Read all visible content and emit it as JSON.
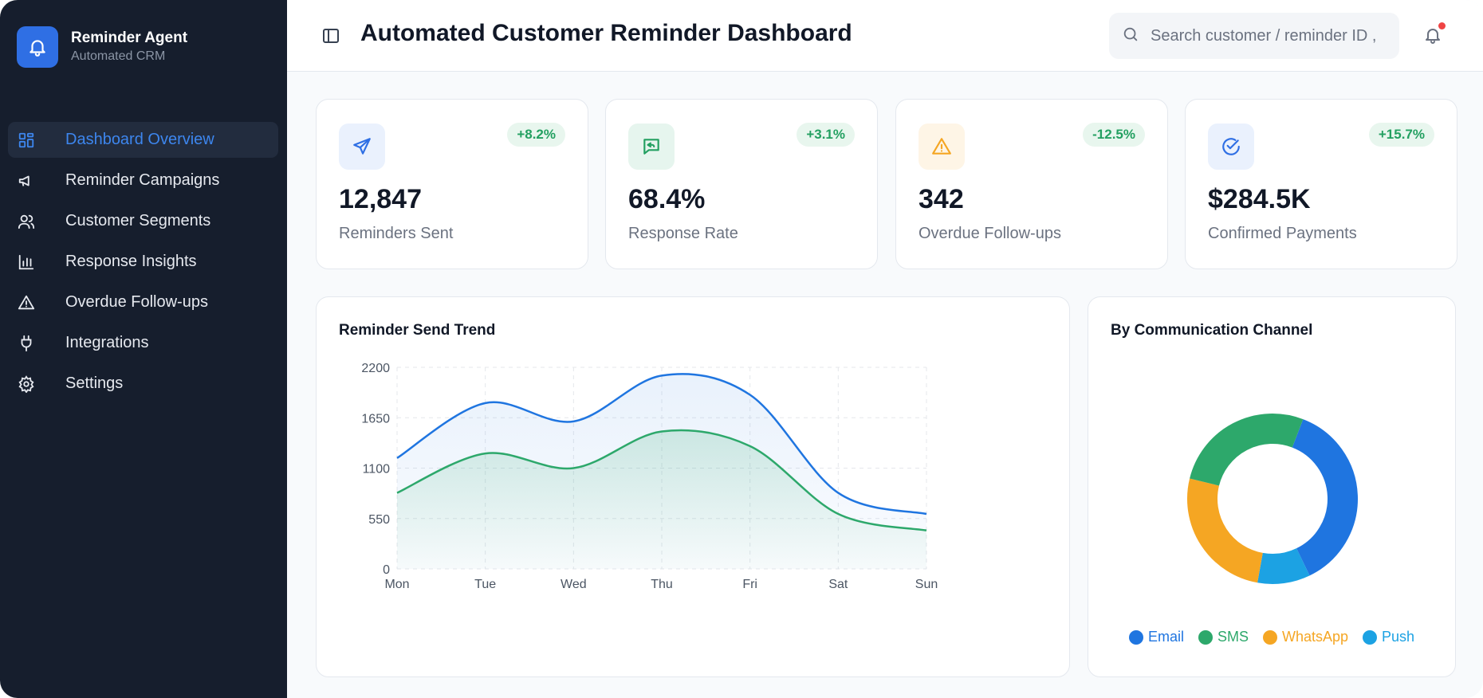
{
  "brand": {
    "title": "Reminder Agent",
    "subtitle": "Automated CRM"
  },
  "sidebar": {
    "items": [
      {
        "label": "Dashboard Overview",
        "icon": "grid-icon",
        "active": true
      },
      {
        "label": "Reminder Campaigns",
        "icon": "megaphone-icon"
      },
      {
        "label": "Customer Segments",
        "icon": "users-icon"
      },
      {
        "label": "Response Insights",
        "icon": "bar-chart-icon"
      },
      {
        "label": "Overdue Follow-ups",
        "icon": "warning-icon"
      },
      {
        "label": "Integrations",
        "icon": "plug-icon"
      },
      {
        "label": "Settings",
        "icon": "gear-icon"
      }
    ]
  },
  "header": {
    "title": "Automated Customer Reminder Dashboard",
    "search_placeholder": "Search customer / reminder ID ,"
  },
  "stats": [
    {
      "value": "12,847",
      "label": "Reminders Sent",
      "change": "+8.2%",
      "icon": "send-icon",
      "trend": "up"
    },
    {
      "value": "68.4%",
      "label": "Response Rate",
      "change": "+3.1%",
      "icon": "message-reply-icon",
      "trend": "up"
    },
    {
      "value": "342",
      "label": "Overdue Follow-ups",
      "change": "-12.5%",
      "icon": "warning-icon",
      "trend": "down"
    },
    {
      "value": "$284.5K",
      "label": "Confirmed Payments",
      "change": "+15.7%",
      "icon": "check-circle-icon",
      "trend": "up"
    }
  ],
  "colors": {
    "accent": "#2f6fe4",
    "blue": "#1f75e0",
    "green": "#2da86b",
    "orange": "#f5a623",
    "sky": "#1ca2e3",
    "sidebar": "#161e2d"
  },
  "trend_chart": {
    "title": "Reminder Send Trend"
  },
  "channel_chart": {
    "title": "By Communication Channel"
  },
  "chart_data": [
    {
      "type": "area",
      "title": "Reminder Send Trend",
      "categories": [
        "Mon",
        "Tue",
        "Wed",
        "Thu",
        "Fri",
        "Sat",
        "Sun"
      ],
      "ylim": [
        0,
        2200
      ],
      "yticks": [
        0,
        550,
        1100,
        1650,
        2200
      ],
      "grid": true,
      "series": [
        {
          "values": [
            1210,
            1810,
            1610,
            2110,
            1900,
            830,
            600
          ],
          "color": "#1f75e0"
        },
        {
          "values": [
            830,
            1260,
            1100,
            1500,
            1340,
            600,
            420
          ],
          "color": "#2da86b"
        }
      ]
    },
    {
      "type": "pie",
      "title": "By Communication Channel",
      "labels": [
        "Email",
        "SMS",
        "WhatsApp",
        "Push"
      ],
      "values": [
        37,
        27,
        26,
        10
      ],
      "colors": [
        "#1f75e0",
        "#2da86b",
        "#f5a623",
        "#1ca2e3"
      ],
      "legend": "bottom"
    }
  ]
}
